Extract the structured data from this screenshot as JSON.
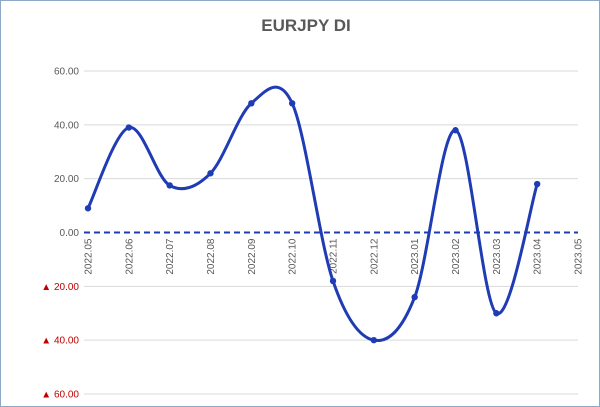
{
  "chart_data": {
    "type": "line",
    "title": "EURJPY DI",
    "xlabel": "",
    "ylabel": "",
    "categories": [
      "2022.05",
      "2022.06",
      "2022.07",
      "2022.08",
      "2022.09",
      "2022.10",
      "2022.11",
      "2022.12",
      "2023.01",
      "2023.02",
      "2023.03",
      "2023.04",
      "2023.05"
    ],
    "series": [
      {
        "values": [
          9,
          39,
          17.5,
          22,
          48,
          48,
          -18,
          -40,
          -24,
          38,
          -30,
          18,
          null
        ]
      }
    ],
    "ylim": [
      -60,
      60
    ],
    "yticks": [
      60,
      40,
      20,
      0,
      -20,
      -40,
      -60
    ],
    "ytick_labels": [
      "60.00",
      "40.00",
      "20.00",
      "0.00",
      "20.00",
      "40.00",
      "60.00"
    ],
    "negative_marker": "▲",
    "grid": "horizontal",
    "zero_line": "dashed",
    "line_color": "#1f3cb4",
    "marker_color": "#1f3cb4",
    "negative_label_color": "#c00000",
    "gridline_color": "#d9d9d9",
    "smooth": true
  }
}
